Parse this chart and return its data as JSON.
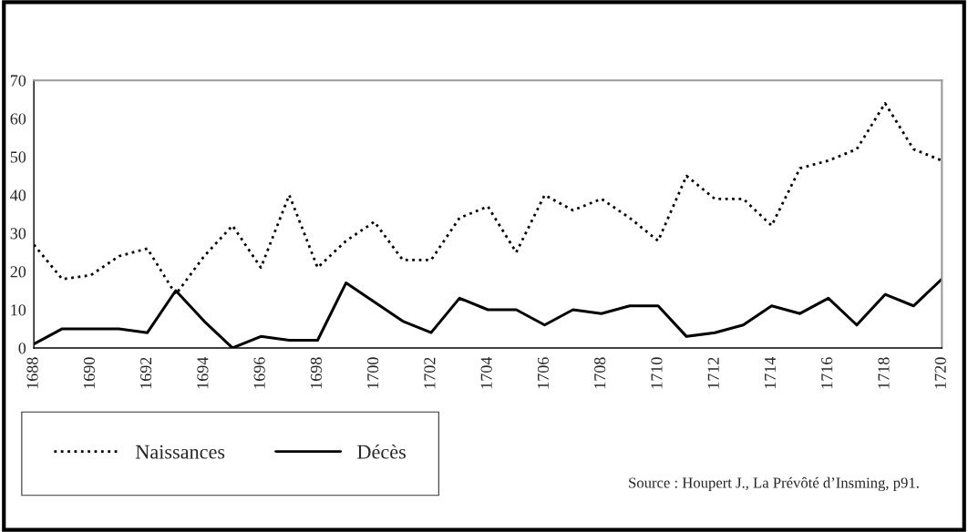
{
  "chart_data": {
    "type": "line",
    "categories": [
      "1688",
      null,
      "1690",
      null,
      "1692",
      null,
      "1694",
      null,
      "1696",
      null,
      "1698",
      null,
      "1700",
      null,
      "1702",
      null,
      "1704",
      null,
      "1706",
      null,
      "1708",
      null,
      "1710",
      null,
      "1712",
      null,
      "1714",
      null,
      "1716",
      null,
      "1718",
      null,
      "1720"
    ],
    "series": [
      {
        "name": "Naissances",
        "color": "#000000",
        "line_style": "dotted",
        "values": [
          27,
          18,
          19,
          24,
          26,
          14,
          24,
          32,
          21,
          40,
          21,
          28,
          33,
          23,
          23,
          34,
          37,
          25,
          40,
          36,
          39,
          34,
          28,
          45,
          39,
          39,
          32,
          47,
          49,
          52,
          64,
          52,
          49
        ]
      },
      {
        "name": "Décès",
        "color": "#000000",
        "line_style": "solid",
        "values": [
          1,
          5,
          5,
          5,
          4,
          15,
          7,
          0,
          3,
          2,
          2,
          17,
          12,
          7,
          4,
          13,
          10,
          10,
          6,
          10,
          9,
          11,
          11,
          3,
          4,
          6,
          11,
          9,
          13,
          6,
          14,
          11,
          18
        ]
      }
    ],
    "ylim": [
      0,
      70
    ],
    "yticks": [
      0,
      10,
      20,
      30,
      40,
      50,
      60,
      70
    ],
    "grid": false,
    "legend": "bottom left",
    "annotations": [
      "Source : Houpert J., La Prévôté d’Insming, p91."
    ]
  }
}
